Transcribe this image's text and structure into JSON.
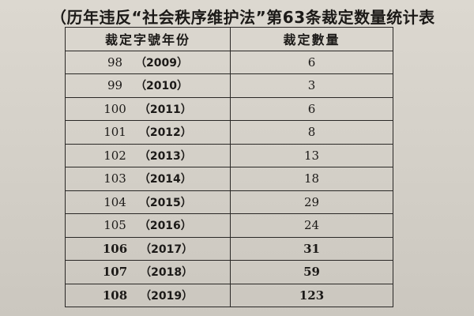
{
  "title": "（历年违反“社会秩序维护法”第63条裁定数量统计表",
  "table": {
    "headers": [
      "裁定字號年份",
      "裁定數量"
    ],
    "rows": [
      {
        "roc": "98",
        "year": "（2009）",
        "count": "6"
      },
      {
        "roc": "99",
        "year": "（2010）",
        "count": "3"
      },
      {
        "roc": "100",
        "year": "（2011）",
        "count": "6"
      },
      {
        "roc": "101",
        "year": "（2012）",
        "count": "8"
      },
      {
        "roc": "102",
        "year": "（2013）",
        "count": "13"
      },
      {
        "roc": "103",
        "year": "（2014）",
        "count": "18"
      },
      {
        "roc": "104",
        "year": "（2015）",
        "count": "29"
      },
      {
        "roc": "105",
        "year": "（2016）",
        "count": "24"
      },
      {
        "roc": "106",
        "year": "（2017）",
        "count": "31"
      },
      {
        "roc": "107",
        "year": "（2018）",
        "count": "59"
      },
      {
        "roc": "108",
        "year": "（2019）",
        "count": "123"
      }
    ]
  }
}
